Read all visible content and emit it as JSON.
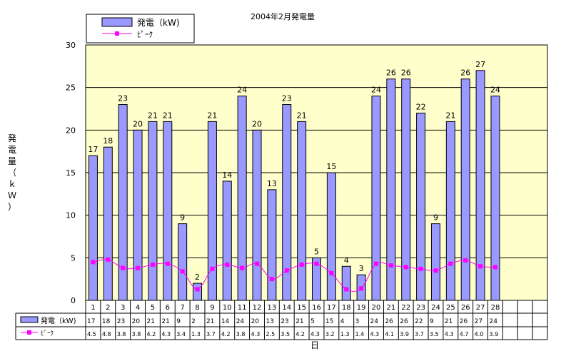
{
  "chart_data": {
    "type": "bar",
    "title": "2004年2月発電量",
    "xlabel": "日",
    "ylabel_chars": [
      "発",
      "電",
      "量",
      "（",
      "ｋ",
      "Ｗ",
      "）"
    ],
    "ylim": [
      0,
      30
    ],
    "yticks": [
      0,
      5,
      10,
      15,
      20,
      25,
      30
    ],
    "grid": true,
    "legend_position": "top-left",
    "categories": [
      "1",
      "2",
      "3",
      "4",
      "5",
      "6",
      "7",
      "8",
      "9",
      "10",
      "11",
      "12",
      "13",
      "14",
      "15",
      "16",
      "17",
      "18",
      "19",
      "20",
      "21",
      "22",
      "23",
      "24",
      "25",
      "26",
      "27",
      "28"
    ],
    "table_empty_columns": 3,
    "series": [
      {
        "name": "発電（kW)",
        "type": "bar",
        "color": "#9999ff",
        "values": [
          17,
          18,
          23,
          20,
          21,
          21,
          9,
          2,
          21,
          14,
          24,
          20,
          13,
          23,
          21,
          5,
          15,
          4,
          3,
          24,
          26,
          26,
          22,
          9,
          21,
          26,
          27,
          24
        ]
      },
      {
        "name": "ﾋﾟｰｸ",
        "type": "line",
        "color": "#ff00ff",
        "values": [
          4.5,
          4.8,
          3.8,
          3.8,
          4.2,
          4.3,
          3.4,
          1.3,
          3.7,
          4.2,
          3.8,
          4.3,
          2.5,
          3.5,
          4.2,
          4.3,
          3.2,
          1.3,
          1.4,
          4.3,
          4.1,
          3.9,
          3.7,
          3.5,
          4.3,
          4.7,
          4.0,
          3.9
        ]
      }
    ],
    "colors": {
      "plot_background": "#ffffcc",
      "bar_fill": "#9999ff",
      "peak_line": "#ff00ff",
      "grid": "#000000"
    }
  }
}
